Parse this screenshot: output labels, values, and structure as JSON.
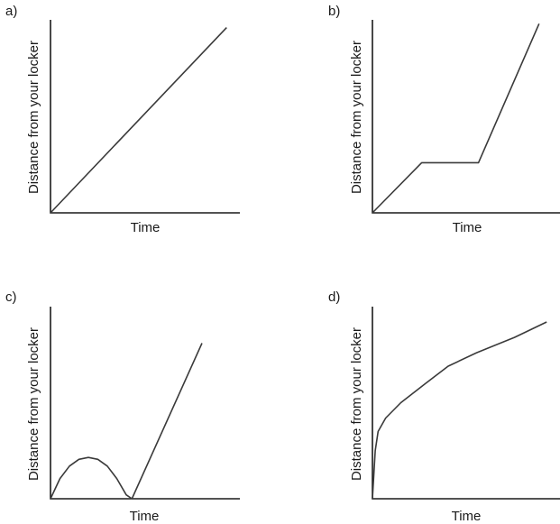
{
  "chart_data": [
    {
      "panel_label": "a)",
      "type": "line",
      "xlabel": "Time",
      "ylabel": "Distance from your locker",
      "xlim": [
        0,
        10
      ],
      "ylim": [
        0,
        10
      ],
      "series": [
        {
          "x": [
            0,
            9.3
          ],
          "y": [
            0,
            9.6
          ]
        }
      ]
    },
    {
      "panel_label": "b)",
      "type": "line",
      "xlabel": "Time",
      "ylabel": "Distance from your locker",
      "xlim": [
        0,
        10
      ],
      "ylim": [
        0,
        10
      ],
      "series": [
        {
          "x": [
            0,
            2.6,
            5.6,
            8.8
          ],
          "y": [
            0,
            2.6,
            2.6,
            9.8
          ]
        }
      ]
    },
    {
      "panel_label": "c)",
      "type": "line",
      "xlabel": "Time",
      "ylabel": "Distance from your locker",
      "xlim": [
        0,
        10
      ],
      "ylim": [
        0,
        10
      ],
      "series": [
        {
          "x": [
            0,
            0.5,
            1,
            1.5,
            2,
            2.5,
            3,
            3.5,
            4,
            4.3,
            8
          ],
          "y": [
            0,
            1.05,
            1.7,
            2.05,
            2.15,
            2.05,
            1.7,
            1.05,
            0.2,
            0,
            8.1
          ]
        }
      ]
    },
    {
      "panel_label": "d)",
      "type": "line",
      "xlabel": "Time",
      "ylabel": "Distance from your locker",
      "xlim": [
        0,
        10
      ],
      "ylim": [
        0,
        10
      ],
      "series": [
        {
          "x": [
            0,
            0.15,
            0.3,
            0.7,
            1.5,
            2.8,
            4.0,
            5.5,
            7.5,
            9.2
          ],
          "y": [
            0,
            2.5,
            3.5,
            4.2,
            5.0,
            6.0,
            6.9,
            7.6,
            8.4,
            9.2
          ]
        }
      ]
    }
  ]
}
